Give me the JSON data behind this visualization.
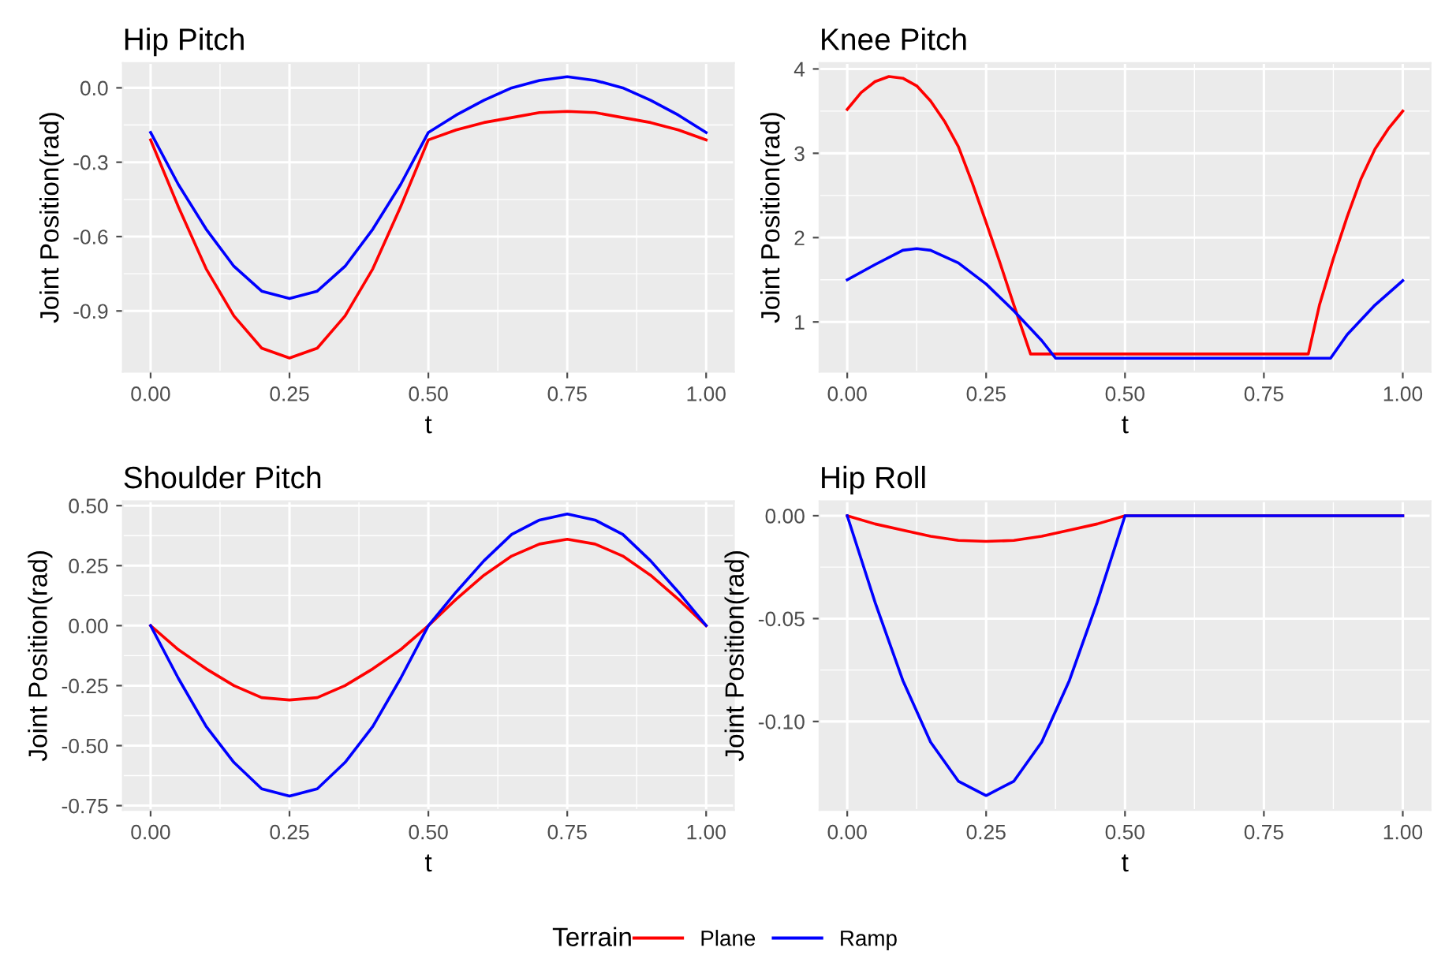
{
  "chart_data": [
    {
      "type": "line",
      "title": "Hip Pitch",
      "xlabel": "t",
      "ylabel": "Joint Position(rad)",
      "legend": "bottom",
      "legend_title": "Terrain",
      "grid": true,
      "xlim": [
        -0.05,
        1.05
      ],
      "ylim": [
        -1.145,
        0.1
      ],
      "xticks": [
        {
          "value": 0,
          "label": "0.00"
        },
        {
          "value": 0.25,
          "label": "0.25"
        },
        {
          "value": 0.5,
          "label": "0.50"
        },
        {
          "value": 0.75,
          "label": "0.75"
        },
        {
          "value": 1,
          "label": "1.00"
        }
      ],
      "yticks": [
        {
          "value": -0.9,
          "label": "-0.9"
        },
        {
          "value": -0.6,
          "label": "-0.6"
        },
        {
          "value": -0.3,
          "label": "-0.3"
        },
        {
          "value": 0,
          "label": "0.0"
        }
      ],
      "series": [
        {
          "name": "Plane",
          "color": "#ff0000",
          "x": [
            0,
            0.05,
            0.1,
            0.15,
            0.2,
            0.25,
            0.3,
            0.35,
            0.4,
            0.45,
            0.5,
            0.55,
            0.6,
            0.65,
            0.7,
            0.75,
            0.8,
            0.85,
            0.9,
            0.95,
            1
          ],
          "values": [
            -0.21,
            -0.48,
            -0.73,
            -0.92,
            -1.05,
            -1.09,
            -1.05,
            -0.92,
            -0.73,
            -0.48,
            -0.21,
            -0.17,
            -0.14,
            -0.12,
            -0.1,
            -0.095,
            -0.1,
            -0.12,
            -0.14,
            -0.17,
            -0.21
          ]
        },
        {
          "name": "Ramp",
          "color": "#0000ff",
          "x": [
            0,
            0.05,
            0.1,
            0.15,
            0.2,
            0.25,
            0.3,
            0.35,
            0.4,
            0.45,
            0.5,
            0.55,
            0.6,
            0.65,
            0.7,
            0.75,
            0.8,
            0.85,
            0.9,
            0.95,
            1
          ],
          "values": [
            -0.18,
            -0.39,
            -0.57,
            -0.72,
            -0.82,
            -0.85,
            -0.82,
            -0.72,
            -0.57,
            -0.39,
            -0.18,
            -0.11,
            -0.05,
            0.0,
            0.03,
            0.045,
            0.03,
            0.0,
            -0.05,
            -0.11,
            -0.18
          ]
        }
      ]
    },
    {
      "type": "line",
      "title": "Knee Pitch",
      "xlabel": "t",
      "ylabel": "Joint Position(rad)",
      "grid": true,
      "xlim": [
        -0.05,
        1.05
      ],
      "ylim": [
        0.41,
        4.07
      ],
      "xticks": [
        {
          "value": 0,
          "label": "0.00"
        },
        {
          "value": 0.25,
          "label": "0.25"
        },
        {
          "value": 0.5,
          "label": "0.50"
        },
        {
          "value": 0.75,
          "label": "0.75"
        },
        {
          "value": 1,
          "label": "1.00"
        }
      ],
      "yticks": [
        1,
        2,
        3,
        4
      ],
      "series": [
        {
          "color": "#ff0000",
          "x": [
            0,
            0.025,
            0.05,
            0.075,
            0.1,
            0.125,
            0.15,
            0.175,
            0.2,
            0.225,
            0.25,
            0.275,
            0.3,
            0.33,
            0.83,
            0.85,
            0.875,
            0.9,
            0.925,
            0.95,
            0.975,
            1
          ],
          "values": [
            3.52,
            3.72,
            3.85,
            3.91,
            3.89,
            3.8,
            3.62,
            3.38,
            3.08,
            2.65,
            2.18,
            1.7,
            1.2,
            0.62,
            0.62,
            1.2,
            1.75,
            2.25,
            2.7,
            3.05,
            3.3,
            3.5
          ]
        },
        {
          "color": "#0000ff",
          "x": [
            0,
            0.05,
            0.1,
            0.125,
            0.15,
            0.2,
            0.25,
            0.3,
            0.35,
            0.375,
            0.87,
            0.9,
            0.95,
            1
          ],
          "values": [
            1.5,
            1.68,
            1.85,
            1.87,
            1.85,
            1.7,
            1.45,
            1.13,
            0.78,
            0.57,
            0.57,
            0.85,
            1.2,
            1.49
          ]
        }
      ]
    },
    {
      "type": "line",
      "title": "Shoulder Pitch",
      "xlabel": "t",
      "ylabel": "Joint Position(rad)",
      "grid": true,
      "xlim": [
        -0.05,
        1.05
      ],
      "ylim": [
        -0.768,
        0.518
      ],
      "xticks": [
        {
          "value": 0,
          "label": "0.00"
        },
        {
          "value": 0.25,
          "label": "0.25"
        },
        {
          "value": 0.5,
          "label": "0.50"
        },
        {
          "value": 0.75,
          "label": "0.75"
        },
        {
          "value": 1,
          "label": "1.00"
        }
      ],
      "yticks": [
        {
          "value": -0.75,
          "label": "-0.75"
        },
        {
          "value": -0.5,
          "label": "-0.50"
        },
        {
          "value": -0.25,
          "label": "-0.25"
        },
        {
          "value": 0,
          "label": "0.00"
        },
        {
          "value": 0.25,
          "label": "0.25"
        },
        {
          "value": 0.5,
          "label": "0.50"
        }
      ],
      "series": [
        {
          "color": "#ff0000",
          "x": [
            0,
            0.05,
            0.1,
            0.15,
            0.2,
            0.25,
            0.3,
            0.35,
            0.4,
            0.45,
            0.5,
            0.55,
            0.6,
            0.65,
            0.7,
            0.75,
            0.8,
            0.85,
            0.9,
            0.95,
            1
          ],
          "values": [
            0,
            -0.1,
            -0.18,
            -0.25,
            -0.3,
            -0.31,
            -0.3,
            -0.25,
            -0.18,
            -0.1,
            0,
            0.11,
            0.21,
            0.29,
            0.34,
            0.36,
            0.34,
            0.29,
            0.21,
            0.11,
            0
          ]
        },
        {
          "color": "#0000ff",
          "x": [
            0,
            0.05,
            0.1,
            0.15,
            0.2,
            0.25,
            0.3,
            0.35,
            0.4,
            0.45,
            0.5,
            0.55,
            0.6,
            0.65,
            0.7,
            0.75,
            0.8,
            0.85,
            0.9,
            0.95,
            1
          ],
          "values": [
            0,
            -0.22,
            -0.42,
            -0.57,
            -0.68,
            -0.71,
            -0.68,
            -0.57,
            -0.42,
            -0.22,
            0,
            0.14,
            0.27,
            0.38,
            0.44,
            0.465,
            0.44,
            0.38,
            0.27,
            0.14,
            0
          ]
        }
      ]
    },
    {
      "type": "line",
      "title": "Hip Roll",
      "xlabel": "t",
      "ylabel": "Joint Position(rad)",
      "grid": true,
      "xlim": [
        -0.05,
        1.05
      ],
      "ylim": [
        -0.143,
        0.007
      ],
      "xticks": [
        {
          "value": 0,
          "label": "0.00"
        },
        {
          "value": 0.25,
          "label": "0.25"
        },
        {
          "value": 0.5,
          "label": "0.50"
        },
        {
          "value": 0.75,
          "label": "0.75"
        },
        {
          "value": 1,
          "label": "1.00"
        }
      ],
      "yticks": [
        {
          "value": -0.1,
          "label": "-0.10"
        },
        {
          "value": -0.05,
          "label": "-0.05"
        },
        {
          "value": 0,
          "label": "0.00"
        }
      ],
      "series": [
        {
          "color": "#ff0000",
          "x": [
            0,
            0.05,
            0.1,
            0.15,
            0.2,
            0.25,
            0.3,
            0.35,
            0.4,
            0.45,
            0.5,
            1
          ],
          "values": [
            0,
            -0.004,
            -0.007,
            -0.01,
            -0.012,
            -0.0125,
            -0.012,
            -0.01,
            -0.007,
            -0.004,
            0,
            0
          ]
        },
        {
          "color": "#0000ff",
          "x": [
            0,
            0.05,
            0.1,
            0.15,
            0.2,
            0.25,
            0.3,
            0.35,
            0.4,
            0.45,
            0.5,
            1
          ],
          "values": [
            0,
            -0.042,
            -0.08,
            -0.11,
            -0.129,
            -0.136,
            -0.129,
            -0.11,
            -0.08,
            -0.042,
            0,
            0
          ]
        }
      ]
    }
  ]
}
